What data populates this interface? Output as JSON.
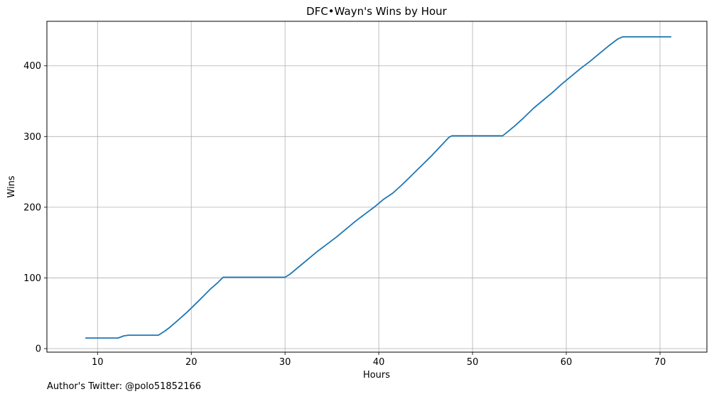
{
  "chart_data": {
    "type": "line",
    "title": "DFC•Wayn's Wins by Hour",
    "xlabel": "Hours",
    "ylabel": "Wins",
    "xlim": [
      4.6,
      75.0
    ],
    "ylim": [
      -5,
      463
    ],
    "xticks": [
      10,
      20,
      30,
      40,
      50,
      60,
      70
    ],
    "yticks": [
      0,
      100,
      200,
      300,
      400
    ],
    "grid": true,
    "line_color": "#1f77b4",
    "series": [
      {
        "x": [
          8.7,
          12.2,
          12.8,
          13.3,
          16.5,
          17.2,
          17.7,
          18.4,
          19.0,
          19.6,
          20.2,
          20.9,
          21.5,
          22.1,
          22.8,
          23.4,
          24.0,
          26.0,
          28.0,
          30.0,
          30.5,
          31.5,
          32.5,
          33.5,
          34.5,
          35.5,
          36.5,
          37.5,
          38.5,
          39.5,
          40.5,
          41.5,
          42.5,
          43.5,
          44.5,
          45.5,
          46.5,
          47.5,
          47.8,
          50.0,
          53.2,
          53.5,
          54.5,
          55.5,
          56.5,
          57.5,
          58.5,
          59.5,
          60.5,
          61.5,
          62.5,
          63.5,
          64.5,
          65.5,
          66.0,
          68.0,
          71.2
        ],
        "y": [
          15,
          15,
          18,
          19,
          19,
          25,
          30,
          38,
          45,
          52,
          60,
          69,
          77,
          85,
          93,
          101,
          101,
          101,
          101,
          101,
          105,
          116,
          127,
          138,
          148,
          158,
          169,
          180,
          190,
          200,
          211,
          220,
          232,
          245,
          258,
          271,
          285,
          299,
          301,
          301,
          301,
          304,
          315,
          327,
          340,
          351,
          362,
          374,
          385,
          396,
          406,
          417,
          428,
          438,
          441,
          441,
          441
        ]
      }
    ]
  },
  "credit": "Author's Twitter: @polo51852166"
}
